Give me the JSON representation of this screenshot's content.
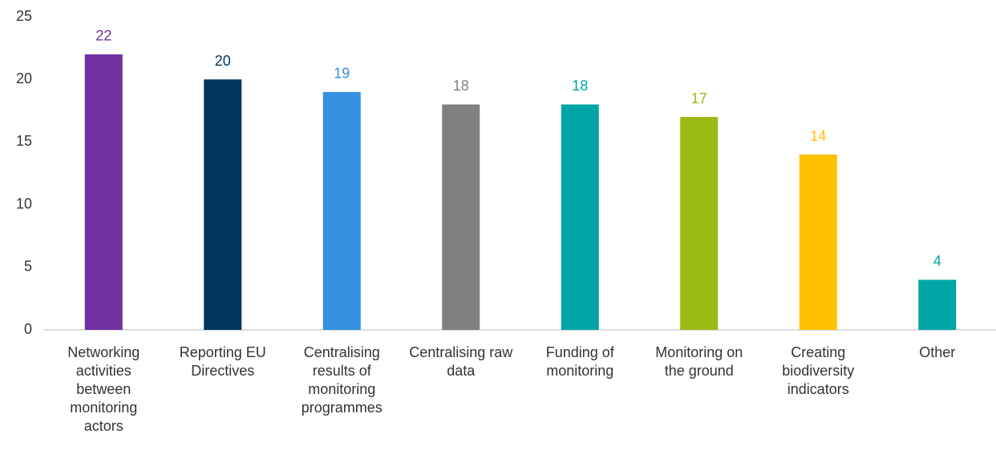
{
  "chart_data": {
    "type": "bar",
    "categories": [
      "Networking activities between monitoring actors",
      "Reporting EU Directives",
      "Centralising results of monitoring programmes",
      "Centralising raw data",
      "Funding of monitoring",
      "Monitoring on the ground",
      "Creating biodiversity indicators",
      "Other"
    ],
    "values": [
      22,
      20,
      19,
      18,
      18,
      17,
      14,
      4
    ],
    "colors": [
      "#7030a0",
      "#003660",
      "#3490e0",
      "#808080",
      "#00a5a5",
      "#99bb11",
      "#ffc000",
      "#00a5a5"
    ],
    "ylim": [
      0,
      25
    ],
    "yticks": [
      0,
      5,
      10,
      15,
      20,
      25
    ],
    "grid": false
  }
}
